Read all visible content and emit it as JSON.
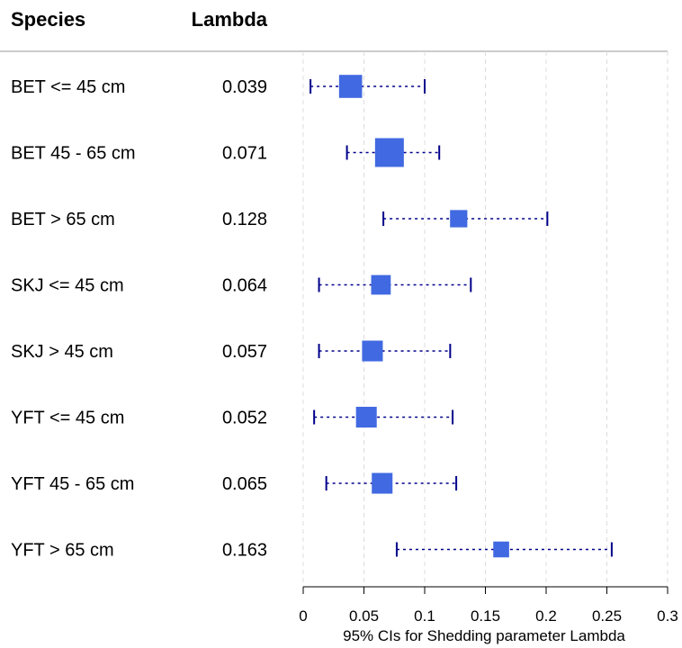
{
  "chart_data": {
    "type": "forest",
    "headers": {
      "label": "Species",
      "value": "Lambda"
    },
    "xlabel": "95% CIs for Shedding parameter Lambda",
    "xlim": [
      0,
      0.3
    ],
    "xticks": [
      "0",
      "0.05",
      "0.1",
      "0.15",
      "0.2",
      "0.25",
      "0.3"
    ],
    "grid": "vertical dashed",
    "point_color": "#4169E1",
    "ci_color": "#00008B",
    "rows": [
      {
        "label": "BET <= 45 cm",
        "value_text": "0.039",
        "estimate": 0.039,
        "lower": 0.006,
        "upper": 0.1,
        "weight": 0.8
      },
      {
        "label": "BET 45 - 65 cm",
        "value_text": "0.071",
        "estimate": 0.071,
        "lower": 0.036,
        "upper": 0.112,
        "weight": 1.0
      },
      {
        "label": "BET > 65 cm",
        "value_text": "0.128",
        "estimate": 0.128,
        "lower": 0.066,
        "upper": 0.201,
        "weight": 0.6
      },
      {
        "label": "SKJ <= 45 cm",
        "value_text": "0.064",
        "estimate": 0.064,
        "lower": 0.013,
        "upper": 0.138,
        "weight": 0.68
      },
      {
        "label": "SKJ > 45 cm",
        "value_text": "0.057",
        "estimate": 0.057,
        "lower": 0.013,
        "upper": 0.121,
        "weight": 0.72
      },
      {
        "label": "YFT <= 45 cm",
        "value_text": "0.052",
        "estimate": 0.052,
        "lower": 0.009,
        "upper": 0.123,
        "weight": 0.72
      },
      {
        "label": "YFT 45 - 65 cm",
        "value_text": "0.065",
        "estimate": 0.065,
        "lower": 0.019,
        "upper": 0.126,
        "weight": 0.72
      },
      {
        "label": "YFT > 65 cm",
        "value_text": "0.163",
        "estimate": 0.163,
        "lower": 0.077,
        "upper": 0.254,
        "weight": 0.55
      }
    ]
  }
}
